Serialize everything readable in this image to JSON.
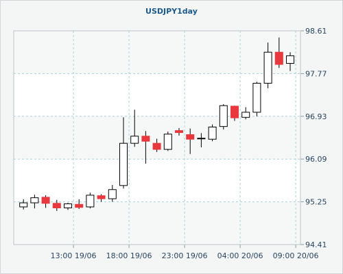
{
  "chart_data": {
    "type": "candlestick",
    "title": "USDJPY1day",
    "xlabel": "",
    "ylabel": "",
    "ylim": [
      94.41,
      98.61
    ],
    "y_ticks": [
      "98.61",
      "97.77",
      "96.93",
      "96.09",
      "95.25",
      "94.41"
    ],
    "x_ticks": [
      {
        "label": "13:00 19/06",
        "index": 4.5
      },
      {
        "label": "18:00 19/06",
        "index": 9.5
      },
      {
        "label": "23:00 19/06",
        "index": 14.5
      },
      {
        "label": "04:00 20/06",
        "index": 19.5
      },
      {
        "label": "09:00 20/06",
        "index": 24.5
      }
    ],
    "grid": true,
    "colors": {
      "bull": "#ffffff",
      "bear": "#e8393e",
      "wick": "#000000",
      "grid": "#a7d3d9",
      "background": "#ffffff",
      "alt_band": "#f6f7f7"
    },
    "candles": [
      {
        "open": 95.15,
        "high": 95.3,
        "low": 95.1,
        "close": 95.23
      },
      {
        "open": 95.23,
        "high": 95.39,
        "low": 95.12,
        "close": 95.33
      },
      {
        "open": 95.34,
        "high": 95.38,
        "low": 95.13,
        "close": 95.22
      },
      {
        "open": 95.22,
        "high": 95.29,
        "low": 95.07,
        "close": 95.13
      },
      {
        "open": 95.13,
        "high": 95.23,
        "low": 95.09,
        "close": 95.21
      },
      {
        "open": 95.2,
        "high": 95.3,
        "low": 95.11,
        "close": 95.14
      },
      {
        "open": 95.15,
        "high": 95.43,
        "low": 95.12,
        "close": 95.38
      },
      {
        "open": 95.37,
        "high": 95.4,
        "low": 95.25,
        "close": 95.31
      },
      {
        "open": 95.31,
        "high": 95.58,
        "low": 95.25,
        "close": 95.49
      },
      {
        "open": 95.57,
        "high": 96.91,
        "low": 95.51,
        "close": 96.4
      },
      {
        "open": 96.4,
        "high": 97.06,
        "low": 96.33,
        "close": 96.54
      },
      {
        "open": 96.54,
        "high": 96.64,
        "low": 96.0,
        "close": 96.44
      },
      {
        "open": 96.4,
        "high": 96.49,
        "low": 96.23,
        "close": 96.28
      },
      {
        "open": 96.28,
        "high": 96.63,
        "low": 96.25,
        "close": 96.58
      },
      {
        "open": 96.65,
        "high": 96.7,
        "low": 96.55,
        "close": 96.61
      },
      {
        "open": 96.57,
        "high": 96.69,
        "low": 96.19,
        "close": 96.48
      },
      {
        "open": 96.49,
        "high": 96.6,
        "low": 96.32,
        "close": 96.5
      },
      {
        "open": 96.48,
        "high": 96.77,
        "low": 96.44,
        "close": 96.72
      },
      {
        "open": 96.73,
        "high": 97.17,
        "low": 96.67,
        "close": 97.14
      },
      {
        "open": 97.13,
        "high": 97.14,
        "low": 96.84,
        "close": 96.9
      },
      {
        "open": 96.91,
        "high": 97.11,
        "low": 96.87,
        "close": 97.01
      },
      {
        "open": 97.01,
        "high": 97.61,
        "low": 96.93,
        "close": 97.58
      },
      {
        "open": 97.58,
        "high": 98.38,
        "low": 97.48,
        "close": 98.19
      },
      {
        "open": 98.19,
        "high": 98.48,
        "low": 97.88,
        "close": 97.95
      },
      {
        "open": 97.97,
        "high": 98.19,
        "low": 97.82,
        "close": 98.12
      }
    ]
  }
}
